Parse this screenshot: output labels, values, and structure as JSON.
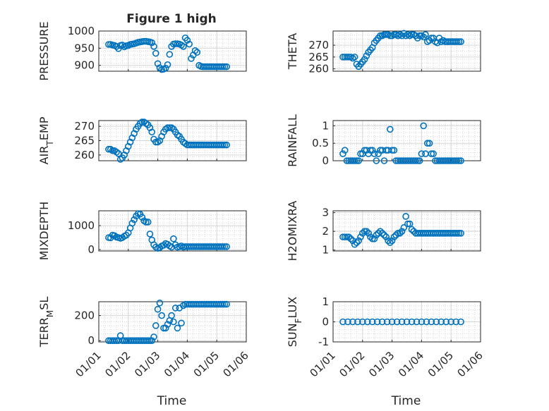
{
  "figure": {
    "title": "Figure 1 high",
    "x_axis_label": "Time",
    "x_tick_labels": [
      "01/01",
      "01/02",
      "01/03",
      "01/04",
      "01/05",
      "01/06"
    ],
    "marker_color": "#0072bd",
    "marker_style": "circle",
    "grid": "major and minor"
  },
  "chart_data": [
    {
      "type": "scatter",
      "ylabel": "PRESSURE",
      "xlim": [
        0,
        150
      ],
      "ylim": [
        883,
        1000
      ],
      "yticks": [
        1000,
        950,
        900
      ],
      "ytick_labels": [
        "1000",
        "950",
        "900"
      ],
      "x": [
        10,
        12,
        14,
        16,
        18,
        20,
        22,
        24,
        26,
        28,
        30,
        32,
        34,
        36,
        38,
        40,
        42,
        44,
        46,
        48,
        50,
        52,
        54,
        56,
        58,
        60,
        62,
        64,
        66,
        68,
        70,
        72,
        74,
        76,
        78,
        80,
        82,
        84,
        86,
        88,
        90,
        92,
        94,
        96,
        98,
        100,
        102,
        104,
        106,
        108,
        110,
        112,
        114,
        116,
        118,
        120,
        122,
        124,
        126,
        128,
        130
      ],
      "y": [
        961,
        961,
        959,
        958,
        955,
        949,
        958,
        959,
        954,
        957,
        958,
        961,
        962,
        963,
        965,
        967,
        968,
        969,
        970,
        970,
        969,
        968,
        966,
        955,
        935,
        905,
        893,
        888,
        889,
        892,
        902,
        932,
        955,
        962,
        963,
        963,
        962,
        959,
        955,
        980,
        973,
        962,
        920,
        930,
        943,
        938,
        900,
        897,
        896,
        896,
        896,
        896,
        896,
        896,
        896,
        896,
        896,
        896,
        896,
        896,
        896
      ]
    },
    {
      "type": "scatter",
      "ylabel": "THETA",
      "xlim": [
        0,
        150
      ],
      "ylim": [
        259,
        276
      ],
      "yticks": [
        260,
        265,
        270
      ],
      "ytick_labels": [
        "260",
        "265",
        "270"
      ],
      "x": [
        10,
        12,
        14,
        16,
        18,
        20,
        22,
        24,
        26,
        28,
        30,
        32,
        34,
        36,
        38,
        40,
        42,
        44,
        46,
        48,
        50,
        52,
        54,
        56,
        58,
        60,
        62,
        64,
        66,
        68,
        70,
        72,
        74,
        76,
        78,
        80,
        82,
        84,
        86,
        88,
        90,
        92,
        94,
        96,
        98,
        100,
        102,
        104,
        106,
        108,
        110,
        112,
        114,
        116,
        118,
        120,
        122,
        124,
        126,
        128,
        130
      ],
      "y": [
        265,
        265,
        265,
        265,
        265,
        264.5,
        265,
        262,
        261,
        262,
        263,
        264,
        265.5,
        267,
        268,
        269,
        271,
        272,
        273,
        274,
        274,
        274.5,
        274.5,
        274.5,
        274,
        274,
        274.5,
        274.5,
        274,
        274.5,
        274,
        275,
        274,
        274.5,
        274,
        274.5,
        274.5,
        274,
        273,
        274,
        274,
        273.5,
        274.5,
        271.5,
        272,
        273,
        273,
        271.5,
        271,
        273,
        271.5,
        272,
        271.5,
        271.5,
        271.5,
        271.5,
        271.5,
        271.5,
        271.5,
        271.5,
        271.5
      ]
    },
    {
      "type": "scatter",
      "ylabel": "AIR_TEMP",
      "xlim": [
        0,
        150
      ],
      "ylim": [
        258,
        272
      ],
      "yticks": [
        260,
        265,
        270
      ],
      "ytick_labels": [
        "260",
        "265",
        "270"
      ],
      "x": [
        10,
        12,
        14,
        16,
        18,
        20,
        22,
        24,
        26,
        28,
        30,
        32,
        34,
        36,
        38,
        40,
        42,
        44,
        46,
        48,
        50,
        52,
        54,
        56,
        58,
        60,
        62,
        64,
        66,
        68,
        70,
        72,
        74,
        76,
        78,
        80,
        82,
        84,
        86,
        88,
        90,
        92,
        94,
        96,
        98,
        100,
        102,
        104,
        106,
        108,
        110,
        112,
        114,
        116,
        118,
        120,
        122,
        124,
        126,
        128,
        130
      ],
      "y": [
        262,
        262,
        261.5,
        261.5,
        261,
        260.5,
        258.5,
        259,
        260,
        261.5,
        263,
        264.5,
        266,
        267.5,
        269,
        270,
        271,
        271.5,
        271.5,
        271,
        270.5,
        269.5,
        268,
        265.5,
        264.5,
        264.5,
        265,
        266.5,
        268,
        269,
        269.5,
        269.5,
        269.5,
        269,
        268,
        267,
        266.5,
        265.5,
        264.5,
        264,
        263.5,
        263.5,
        263.5,
        263.5,
        263.5,
        263.5,
        263.5,
        263.5,
        263.5,
        263.5,
        263.5,
        263.5,
        263.5,
        263.5,
        263.5,
        263.5,
        263.5,
        263.5,
        263.5,
        263.5,
        263.5
      ]
    },
    {
      "type": "scatter",
      "ylabel": "RAINFALL",
      "xlim": [
        0,
        150
      ],
      "ylim": [
        0,
        1.15
      ],
      "yticks": [
        0,
        0.5,
        1
      ],
      "ytick_labels": [
        "0",
        "0.5",
        "1"
      ],
      "x": [
        10,
        12,
        14,
        16,
        18,
        20,
        22,
        24,
        26,
        28,
        30,
        32,
        34,
        36,
        38,
        40,
        42,
        44,
        46,
        48,
        50,
        52,
        54,
        56,
        58,
        60,
        62,
        64,
        66,
        68,
        70,
        72,
        74,
        76,
        78,
        80,
        82,
        84,
        86,
        88,
        90,
        92,
        94,
        96,
        98,
        100,
        102,
        104,
        106,
        108,
        110,
        112,
        114,
        116,
        118,
        120,
        122,
        124,
        126,
        128,
        130
      ],
      "y": [
        0.2,
        0.3,
        0,
        0,
        0,
        0,
        0,
        0,
        0,
        0.2,
        0.2,
        0.3,
        0.3,
        0.2,
        0.3,
        0.3,
        0.2,
        0,
        0.2,
        0.3,
        0.3,
        0,
        0.3,
        0.3,
        0.9,
        0.3,
        0.3,
        0,
        0,
        0,
        0,
        0,
        0,
        0,
        0,
        0,
        0,
        0,
        0,
        0,
        0.2,
        1,
        0.2,
        0.5,
        0.5,
        0.2,
        0.2,
        0,
        0,
        0,
        0,
        0,
        0,
        0,
        0,
        0,
        0,
        0,
        0,
        0,
        0
      ]
    },
    {
      "type": "scatter",
      "ylabel": "MIXDEPTH",
      "xlim": [
        0,
        150
      ],
      "ylim": [
        -60,
        1620
      ],
      "yticks": [
        0,
        1000
      ],
      "ytick_labels": [
        "0",
        "1000"
      ],
      "x": [
        10,
        12,
        14,
        16,
        18,
        20,
        22,
        24,
        26,
        28,
        30,
        32,
        34,
        36,
        38,
        40,
        42,
        44,
        46,
        48,
        50,
        52,
        54,
        56,
        58,
        60,
        62,
        64,
        66,
        68,
        70,
        72,
        74,
        76,
        78,
        80,
        82,
        84,
        86,
        88,
        90,
        92,
        94,
        96,
        98,
        100,
        102,
        104,
        106,
        108,
        110,
        112,
        114,
        116,
        118,
        120,
        122,
        124,
        126,
        128,
        130
      ],
      "y": [
        500,
        490,
        600,
        580,
        520,
        500,
        470,
        500,
        560,
        600,
        700,
        900,
        1100,
        1250,
        1400,
        1500,
        1480,
        1350,
        1200,
        1150,
        1150,
        650,
        400,
        200,
        100,
        50,
        80,
        150,
        180,
        250,
        220,
        150,
        100,
        450,
        200,
        100,
        120,
        150,
        100,
        120,
        120,
        120,
        120,
        120,
        120,
        120,
        120,
        120,
        120,
        120,
        120,
        120,
        120,
        120,
        120,
        120,
        120,
        120,
        120,
        120,
        120
      ]
    },
    {
      "type": "scatter",
      "ylabel": "H2OMIXRA",
      "xlim": [
        0,
        150
      ],
      "ylim": [
        0.95,
        3.1
      ],
      "yticks": [
        1,
        2,
        3
      ],
      "ytick_labels": [
        "1",
        "2",
        "3"
      ],
      "x": [
        10,
        12,
        14,
        16,
        18,
        20,
        22,
        24,
        26,
        28,
        30,
        32,
        34,
        36,
        38,
        40,
        42,
        44,
        46,
        48,
        50,
        52,
        54,
        56,
        58,
        60,
        62,
        64,
        66,
        68,
        70,
        72,
        74,
        76,
        78,
        80,
        82,
        84,
        86,
        88,
        90,
        92,
        94,
        96,
        98,
        100,
        102,
        104,
        106,
        108,
        110,
        112,
        114,
        116,
        118,
        120,
        122,
        124,
        126,
        128,
        130
      ],
      "y": [
        1.7,
        1.7,
        1.7,
        1.7,
        1.6,
        1.5,
        1.3,
        1.4,
        1.5,
        1.7,
        1.9,
        2.0,
        2.0,
        1.9,
        1.7,
        1.6,
        1.6,
        1.8,
        1.9,
        2.0,
        1.9,
        1.8,
        1.7,
        1.5,
        1.4,
        1.5,
        1.7,
        1.8,
        1.9,
        1.9,
        2.0,
        2.2,
        2.8,
        2.4,
        2.4,
        2.1,
        2.0,
        1.9,
        1.9,
        1.9,
        1.9,
        1.9,
        1.9,
        1.9,
        1.9,
        1.9,
        1.9,
        1.9,
        1.9,
        1.9,
        1.9,
        1.9,
        1.9,
        1.9,
        1.9,
        1.9,
        1.9,
        1.9,
        1.9,
        1.9,
        1.9
      ]
    },
    {
      "type": "scatter",
      "ylabel": "TERR_MSL",
      "xlim": [
        0,
        150
      ],
      "ylim": [
        -10,
        310
      ],
      "yticks": [
        0,
        200
      ],
      "ytick_labels": [
        "0",
        "200"
      ],
      "x": [
        10,
        12,
        14,
        16,
        18,
        20,
        22,
        24,
        26,
        28,
        30,
        32,
        34,
        36,
        38,
        40,
        42,
        44,
        46,
        48,
        50,
        52,
        54,
        56,
        58,
        60,
        62,
        64,
        66,
        68,
        70,
        72,
        74,
        76,
        78,
        80,
        82,
        84,
        86,
        88,
        90,
        92,
        94,
        96,
        98,
        100,
        102,
        104,
        106,
        108,
        110,
        112,
        114,
        116,
        118,
        120,
        122,
        124,
        126,
        128,
        130
      ],
      "y": [
        0,
        0,
        0,
        0,
        0,
        0,
        40,
        0,
        0,
        0,
        0,
        0,
        0,
        0,
        0,
        0,
        0,
        0,
        0,
        0,
        0,
        0,
        0,
        30,
        120,
        250,
        300,
        200,
        100,
        100,
        130,
        160,
        200,
        150,
        260,
        100,
        260,
        140,
        280,
        290,
        290,
        290,
        290,
        290,
        290,
        290,
        290,
        290,
        290,
        290,
        290,
        290,
        290,
        290,
        290,
        290,
        290,
        290,
        290,
        290,
        290
      ]
    },
    {
      "type": "scatter",
      "ylabel": "SUN_FLUX",
      "xlim": [
        0,
        150
      ],
      "ylim": [
        -1,
        1
      ],
      "yticks": [
        -1,
        0,
        1
      ],
      "ytick_labels": [
        "-1",
        "0",
        "1"
      ],
      "x": [
        10,
        15,
        20,
        25,
        30,
        35,
        40,
        45,
        50,
        55,
        60,
        65,
        70,
        75,
        80,
        85,
        90,
        95,
        100,
        105,
        110,
        115,
        120,
        125,
        130
      ],
      "y": [
        0,
        0,
        0,
        0,
        0,
        0,
        0,
        0,
        0,
        0,
        0,
        0,
        0,
        0,
        0,
        0,
        0,
        0,
        0,
        0,
        0,
        0,
        0,
        0,
        0
      ]
    }
  ]
}
